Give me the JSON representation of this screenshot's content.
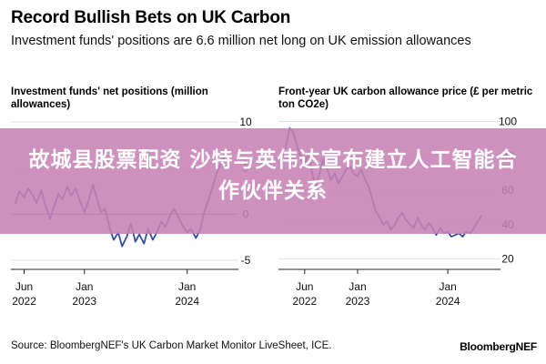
{
  "header": {
    "title": "Record Bullish Bets on UK Carbon",
    "subtitle": "Investment funds' positions are 6.6 million net long on UK emission allowances"
  },
  "banner": {
    "text": "故城县股票配资 沙特与英伟达宣布建立人工智能合作伙伴关系"
  },
  "footer": {
    "source": "Source: BloombergNEF's UK Carbon Market Monitor LiveSheet, ICE.",
    "brand": "BloombergNEF"
  },
  "colors": {
    "line": "#2f4fa6",
    "grid": "#e2e2e2",
    "zero_line": "#777777",
    "banner": "#c782b4"
  },
  "chart_data": [
    {
      "type": "line",
      "title": "Investment funds' net positions (million allowances)",
      "xlabel": "",
      "ylabel": "",
      "x_ticks": [
        {
          "date": "2022-06-01",
          "line1": "Jun",
          "line2": "2022"
        },
        {
          "date": "2023-01-01",
          "line1": "Jan",
          "line2": "2023"
        },
        {
          "date": "2024-01-01",
          "line1": "Jan",
          "line2": "2024"
        }
      ],
      "y_ticks": [
        "10",
        "5",
        "0",
        "-5"
      ],
      "y_tick_values": [
        10,
        5,
        0,
        -5
      ],
      "ylim": [
        -6,
        11
      ],
      "xlim": [
        "2022-04-15",
        "2024-07-01"
      ],
      "grid": true,
      "y_axis_side": "right",
      "series": [
        {
          "points": [
            [
              "2022-05-01",
              1.2
            ],
            [
              "2022-05-15",
              2.5
            ],
            [
              "2022-06-01",
              1.8
            ],
            [
              "2022-06-15",
              2.8
            ],
            [
              "2022-07-01",
              2.1
            ],
            [
              "2022-07-15",
              1.2
            ],
            [
              "2022-08-01",
              2.6
            ],
            [
              "2022-08-15",
              1.0
            ],
            [
              "2022-09-01",
              -0.5
            ],
            [
              "2022-09-15",
              0.8
            ],
            [
              "2022-10-01",
              2.2
            ],
            [
              "2022-10-15",
              1.6
            ],
            [
              "2022-11-01",
              3.0
            ],
            [
              "2022-11-15",
              2.0
            ],
            [
              "2022-12-01",
              2.8
            ],
            [
              "2022-12-15",
              1.5
            ],
            [
              "2023-01-01",
              0.2
            ],
            [
              "2023-01-15",
              1.4
            ],
            [
              "2023-02-01",
              3.2
            ],
            [
              "2023-02-15",
              1.6
            ],
            [
              "2023-03-01",
              0.2
            ],
            [
              "2023-03-15",
              0.6
            ],
            [
              "2023-04-01",
              -1.5
            ],
            [
              "2023-04-15",
              -2.8
            ],
            [
              "2023-05-01",
              -2.0
            ],
            [
              "2023-05-15",
              -3.5
            ],
            [
              "2023-06-01",
              -2.4
            ],
            [
              "2023-06-15",
              -1.0
            ],
            [
              "2023-07-01",
              -3.0
            ],
            [
              "2023-07-15",
              -2.2
            ],
            [
              "2023-08-01",
              -3.2
            ],
            [
              "2023-08-15",
              -1.6
            ],
            [
              "2023-09-01",
              -2.8
            ],
            [
              "2023-09-15",
              -2.0
            ],
            [
              "2023-10-01",
              -0.8
            ],
            [
              "2023-10-15",
              -1.4
            ],
            [
              "2023-11-01",
              -0.2
            ],
            [
              "2023-11-15",
              0.6
            ],
            [
              "2023-12-01",
              -0.3
            ],
            [
              "2023-12-15",
              -1.2
            ],
            [
              "2024-01-01",
              -2.0
            ],
            [
              "2024-01-15",
              -1.6
            ],
            [
              "2024-02-01",
              -2.6
            ],
            [
              "2024-02-15",
              -1.8
            ],
            [
              "2024-03-01",
              0.2
            ],
            [
              "2024-03-15",
              1.4
            ],
            [
              "2024-04-01",
              3.0
            ],
            [
              "2024-04-15",
              4.5
            ],
            [
              "2024-05-01",
              5.5
            ],
            [
              "2024-05-15",
              6.6
            ]
          ]
        }
      ]
    },
    {
      "type": "line",
      "title": "Front-year UK carbon allowance price (£ per metric ton CO2e)",
      "xlabel": "",
      "ylabel": "",
      "x_ticks": [
        {
          "date": "2022-06-01",
          "line1": "Jun",
          "line2": "2022"
        },
        {
          "date": "2023-01-01",
          "line1": "Jan",
          "line2": "2023"
        },
        {
          "date": "2024-01-01",
          "line1": "Jan",
          "line2": "2024"
        }
      ],
      "y_ticks": [
        "100",
        "80",
        "60",
        "40",
        "20"
      ],
      "y_tick_values": [
        100,
        80,
        60,
        40,
        20
      ],
      "ylim": [
        14,
        105
      ],
      "xlim": [
        "2022-02-15",
        "2024-08-01"
      ],
      "grid": true,
      "y_axis_side": "right",
      "series": [
        {
          "points": [
            [
              "2022-03-01",
              80
            ],
            [
              "2022-03-15",
              84
            ],
            [
              "2022-04-01",
              96
            ],
            [
              "2022-04-15",
              94
            ],
            [
              "2022-05-01",
              86
            ],
            [
              "2022-05-15",
              80
            ],
            [
              "2022-06-01",
              74
            ],
            [
              "2022-06-15",
              82
            ],
            [
              "2022-07-01",
              70
            ],
            [
              "2022-07-15",
              62
            ],
            [
              "2022-08-01",
              70
            ],
            [
              "2022-08-15",
              78
            ],
            [
              "2022-09-01",
              72
            ],
            [
              "2022-09-15",
              66
            ],
            [
              "2022-10-01",
              70
            ],
            [
              "2022-10-15",
              64
            ],
            [
              "2022-11-01",
              68
            ],
            [
              "2022-11-15",
              72
            ],
            [
              "2022-12-01",
              74
            ],
            [
              "2022-12-15",
              70
            ],
            [
              "2023-01-01",
              68
            ],
            [
              "2023-01-15",
              72
            ],
            [
              "2023-02-01",
              66
            ],
            [
              "2023-02-15",
              62
            ],
            [
              "2023-03-01",
              55
            ],
            [
              "2023-03-15",
              48
            ],
            [
              "2023-04-01",
              44
            ],
            [
              "2023-04-15",
              40
            ],
            [
              "2023-05-01",
              42
            ],
            [
              "2023-05-15",
              37
            ],
            [
              "2023-06-01",
              40
            ],
            [
              "2023-06-15",
              44
            ],
            [
              "2023-07-01",
              47
            ],
            [
              "2023-07-15",
              43
            ],
            [
              "2023-08-01",
              40
            ],
            [
              "2023-08-15",
              38
            ],
            [
              "2023-09-01",
              44
            ],
            [
              "2023-09-15",
              40
            ],
            [
              "2023-10-01",
              37
            ],
            [
              "2023-10-15",
              41
            ],
            [
              "2023-11-01",
              38
            ],
            [
              "2023-11-15",
              34
            ],
            [
              "2023-12-01",
              38
            ],
            [
              "2023-12-15",
              35
            ],
            [
              "2024-01-01",
              36
            ],
            [
              "2024-01-15",
              33
            ],
            [
              "2024-02-01",
              34
            ],
            [
              "2024-02-15",
              35
            ],
            [
              "2024-03-01",
              33
            ],
            [
              "2024-03-15",
              36
            ],
            [
              "2024-04-01",
              35
            ],
            [
              "2024-04-15",
              38
            ],
            [
              "2024-05-01",
              42
            ],
            [
              "2024-05-15",
              45
            ]
          ]
        }
      ]
    }
  ]
}
